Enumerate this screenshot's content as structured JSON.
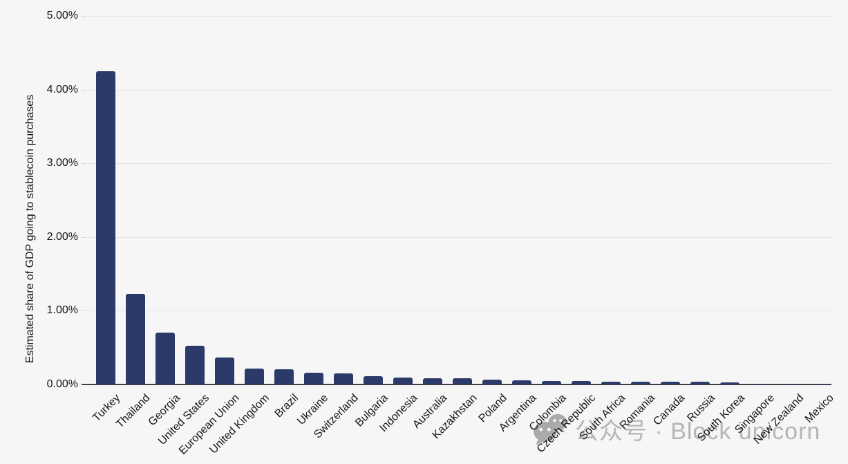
{
  "chart_data": {
    "type": "bar",
    "title": "",
    "xlabel": "",
    "ylabel": "Estimated share of GDP going to stablecoin purchases",
    "ylim": [
      0,
      5
    ],
    "ytick_labels": [
      "0.00%",
      "1.00%",
      "2.00%",
      "3.00%",
      "4.00%",
      "5.00%"
    ],
    "grid": true,
    "legend": "none",
    "bar_color": "#2c3a69",
    "value_unit": "percent of GDP",
    "categories": [
      "Turkey",
      "Thailand",
      "Georgia",
      "United States",
      "European Union",
      "United Kingdom",
      "Brazil",
      "Ukraine",
      "Switzerland",
      "Bulgaria",
      "Indonesia",
      "Australia",
      "Kazakhstan",
      "Poland",
      "Argentina",
      "Colombia",
      "Czech Republic",
      "South Africa",
      "Romania",
      "Canada",
      "Russia",
      "South Korea",
      "Singapore",
      "New Zealand",
      "Mexico"
    ],
    "values": [
      4.25,
      1.23,
      0.7,
      0.53,
      0.37,
      0.22,
      0.21,
      0.16,
      0.15,
      0.11,
      0.09,
      0.085,
      0.08,
      0.062,
      0.058,
      0.05,
      0.046,
      0.042,
      0.038,
      0.036,
      0.034,
      0.032,
      0.012,
      0.006,
      0.004
    ]
  },
  "watermark": {
    "icon": "wechat-icon",
    "text": "公众号 · Block unicorn",
    "color": "#b5b5b5"
  },
  "colors": {
    "background": "#f6f6f7",
    "bar": "#2c3a69",
    "gridline": "#e4e4e6",
    "axis_line": "#3f3f3f",
    "tick_text": "#151515",
    "watermark": "#b5b5b5"
  }
}
